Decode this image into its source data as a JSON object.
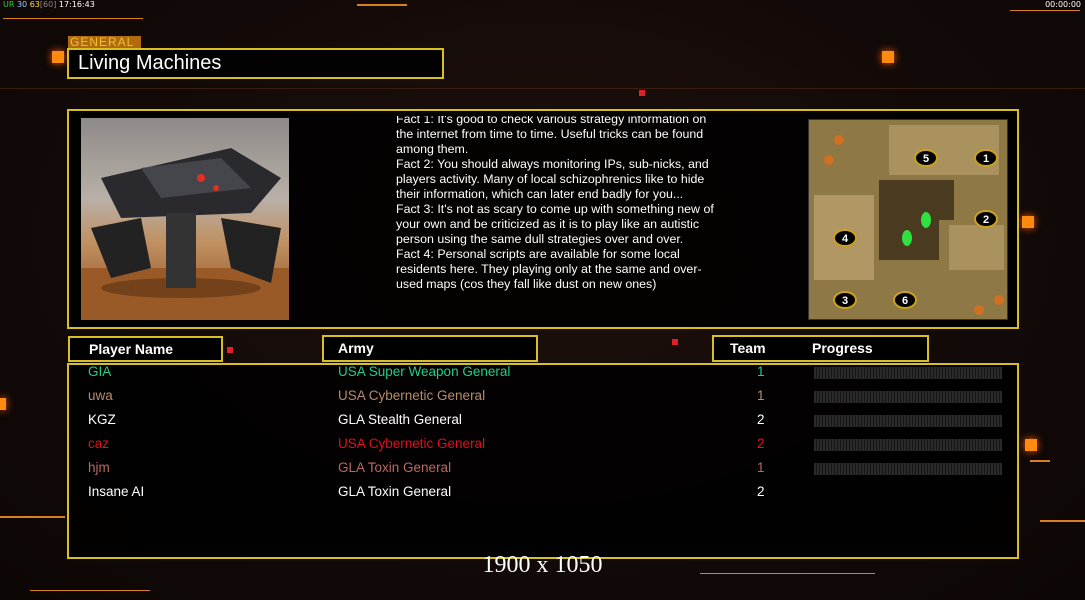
{
  "status": {
    "ur": "UR",
    "a": "30",
    "b": "63",
    "c": "[60]",
    "time": "17:16:43"
  },
  "clock": "00:00:00",
  "header": {
    "category": "GENERAL",
    "map_name": "Living Machines"
  },
  "facts": [
    "Fact 1: It's good to check various strategy information on the internet from time to time. Useful tricks can be found among them.",
    "Fact 2: You should always monitoring IPs, sub-nicks, and players activity. Many of local schizophrenics like to hide their information, which can later end badly for you...",
    "Fact 3: It's not as scary to come up with something new of your own and be criticized as it is to play like an autistic person using the same dull strategies over and over.",
    "Fact 4: Personal scripts are available for some local residents here. They playing only at the same and over-used maps (cos they fall like dust on new ones)"
  ],
  "map": {
    "start_positions": [
      "1",
      "2",
      "3",
      "4",
      "5",
      "6"
    ]
  },
  "columns": {
    "player": "Player Name",
    "army": "Army",
    "team": "Team",
    "progress": "Progress"
  },
  "players": [
    {
      "name": "GIA",
      "army": "USA Super Weapon General",
      "team": "1",
      "color": "#1fcf88",
      "progress": 0
    },
    {
      "name": "uwa",
      "army": "USA Cybernetic General",
      "team": "1",
      "color": "#b58d6c",
      "progress": 0
    },
    {
      "name": "KGZ",
      "army": "GLA Stealth General",
      "team": "2",
      "color": "#ffffff",
      "progress": 0
    },
    {
      "name": "caz",
      "army": "USA Cybernetic General",
      "team": "2",
      "color": "#e0101c",
      "progress": 0
    },
    {
      "name": "hjm",
      "army": "GLA Toxin General",
      "team": "1",
      "color": "#b86a62",
      "progress": 0
    },
    {
      "name": "Insane AI",
      "army": "GLA Toxin General",
      "team": "2",
      "color": "#ffffff"
    }
  ],
  "resolution": "1900 x 1050"
}
